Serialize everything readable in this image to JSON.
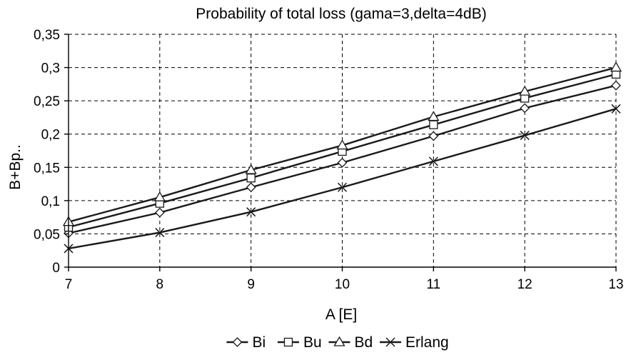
{
  "chart_data": {
    "type": "line",
    "title": "Probability of total loss (gama=3,delta=4dB)",
    "xlabel": "A [E]",
    "ylabel": "B+Bp..",
    "x": [
      7,
      8,
      9,
      10,
      11,
      12,
      13
    ],
    "x_tick_labels": [
      "7",
      "8",
      "9",
      "10",
      "11",
      "12",
      "13"
    ],
    "y_tick_labels": [
      "0",
      "0,05",
      "0,1",
      "0,15",
      "0,2",
      "0,25",
      "0,3",
      "0,35"
    ],
    "xlim": [
      7,
      13
    ],
    "ylim": [
      0,
      0.35
    ],
    "grid": true,
    "legend_position": "bottom",
    "series": [
      {
        "name": "Bi",
        "marker": "diamond",
        "values": [
          0.051,
          0.082,
          0.12,
          0.157,
          0.197,
          0.239,
          0.273
        ]
      },
      {
        "name": "Bu",
        "marker": "square",
        "values": [
          0.06,
          0.096,
          0.134,
          0.174,
          0.214,
          0.254,
          0.29
        ]
      },
      {
        "name": "Bd",
        "marker": "triangle",
        "values": [
          0.068,
          0.105,
          0.146,
          0.183,
          0.226,
          0.264,
          0.3
        ]
      },
      {
        "name": "Erlang",
        "marker": "x",
        "values": [
          0.028,
          0.052,
          0.083,
          0.12,
          0.159,
          0.198,
          0.238
        ]
      }
    ]
  }
}
